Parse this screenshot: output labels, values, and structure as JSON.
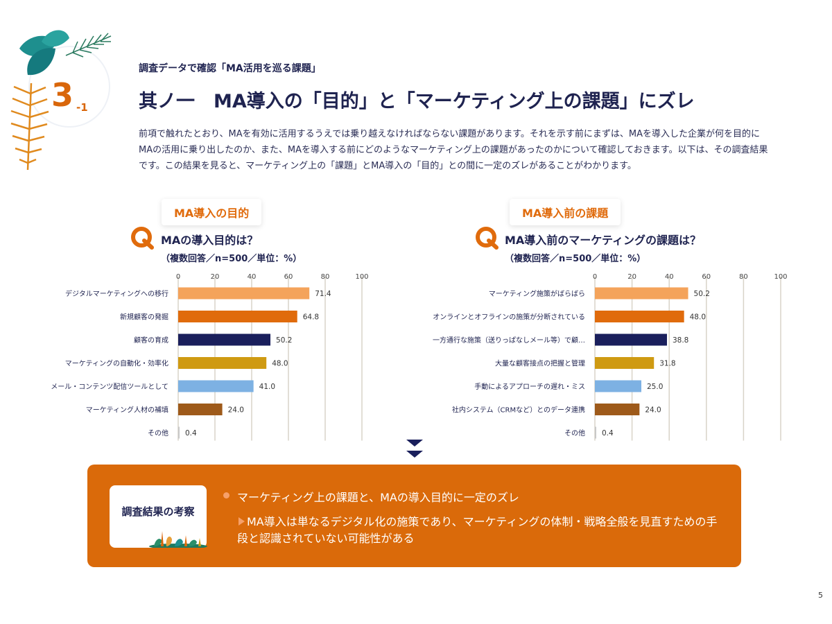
{
  "section": {
    "number": "3",
    "sub": "-1"
  },
  "header": {
    "subtitle": "調査データで確認「MA活用を巡る課題」",
    "title": "其ノ一　MA導入の「目的」と「マーケティング上の課題」にズレ"
  },
  "intro": "前項で触れたとおり、MAを有効に活用するうえでは乗り越えなければならない課題があります。それを示す前にまずは、MAを導入した企業が何を目的にMAの活用に乗り出したのか、また、MAを導入する前にどのようなマーケティング上の課題があったのかについて確認しておきます。以下は、その調査結果です。この結果を見ると、マーケティング上の「課題」とMA導入の「目的」との間に一定のズレがあることがわかります。",
  "left_panel": {
    "chip": "MA導入の目的",
    "question": "MAの導入目的は？",
    "note": "（複数回答／n=500／単位：%）"
  },
  "right_panel": {
    "chip": "MA導入前の課題",
    "question": "MA導入前のマーケティングの課題は？",
    "note": "（複数回答／n=500／単位：%）"
  },
  "chart_data": [
    {
      "type": "bar",
      "orientation": "horizontal",
      "categories": [
        "デジタルマーケティングへの移行",
        "新規顧客の発掘",
        "顧客の育成",
        "マーケティングの自動化・効率化",
        "メール・コンテンツ配信ツールとして",
        "マーケティング人材の補填",
        "その他"
      ],
      "values": [
        71.4,
        64.8,
        50.2,
        48.0,
        41.0,
        24.0,
        0.4
      ],
      "value_labels": [
        "71.4",
        "64.8",
        "50.2",
        "48.0",
        "41.0",
        "24.0",
        "0.4"
      ],
      "colors": [
        "#f4a35b",
        "#e06b0c",
        "#1a1f5c",
        "#cf9a12",
        "#7db1e3",
        "#9e5a1a",
        "#c8c8c8"
      ],
      "xlim": [
        0,
        100
      ],
      "xticks": [
        "0",
        "20",
        "40",
        "60",
        "80",
        "100"
      ],
      "grid": true
    },
    {
      "type": "bar",
      "orientation": "horizontal",
      "categories": [
        "マーケティング施策がばらばら",
        "オンラインとオフラインの施策が分断されている",
        "一方通行な施策（送りっぱなしメール等）で顧…",
        "大量な顧客接点の把握と管理",
        "手動によるアプローチの遅れ・ミス",
        "社内システム（CRMなど）とのデータ連携",
        "その他"
      ],
      "values": [
        50.2,
        48.0,
        38.8,
        31.8,
        25.0,
        24.0,
        0.4
      ],
      "value_labels": [
        "50.2",
        "48.0",
        "38.8",
        "31.8",
        "25.0",
        "24.0",
        "0.4"
      ],
      "colors": [
        "#f4a35b",
        "#e06b0c",
        "#1a1f5c",
        "#cf9a12",
        "#7db1e3",
        "#9e5a1a",
        "#c8c8c8"
      ],
      "xlim": [
        0,
        100
      ],
      "xticks": [
        "0",
        "20",
        "40",
        "60",
        "80",
        "100"
      ],
      "grid": true
    }
  ],
  "result": {
    "label": "調査結果の考察",
    "line1": "マーケティング上の課題と、MAの導入目的に一定のズレ",
    "line2": "MA導入は単なるデジタル化の施策であり、マーケティングの体制・戦略全般を見直すための手段と認識されていない可能性がある"
  },
  "page_number": "5"
}
